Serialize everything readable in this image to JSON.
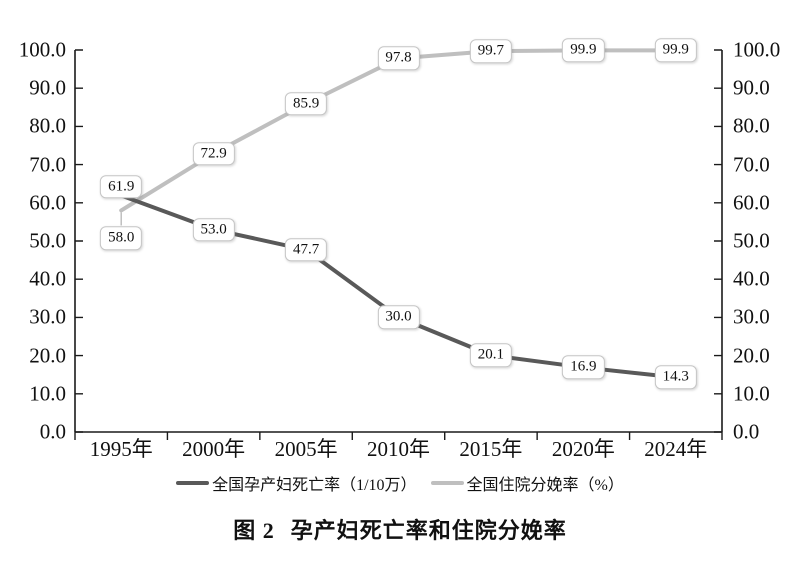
{
  "figure": {
    "caption_label": "图 2",
    "caption_title": "孕产妇死亡率和住院分娩率"
  },
  "chart_data": {
    "type": "line",
    "title": "图2　孕产妇死亡率和住院分娩率",
    "categories": [
      "1995年",
      "2000年",
      "2005年",
      "2010年",
      "2015年",
      "2020年",
      "2024年"
    ],
    "series": [
      {
        "name": "全国孕产妇死亡率（1/10万）",
        "values": [
          61.9,
          53.0,
          47.7,
          30.0,
          20.1,
          16.9,
          14.3
        ],
        "labels": [
          "61.9",
          "53.0",
          "47.7",
          "30.0",
          "20.1",
          "16.9",
          "14.3"
        ],
        "color": "#595959",
        "label_dx": [
          0,
          0,
          0,
          0,
          0,
          0,
          0
        ],
        "label_dy": [
          -9,
          0,
          0,
          0,
          0,
          0,
          0
        ],
        "leader_points": []
      },
      {
        "name": "全国住院分娩率（%）",
        "values": [
          58.0,
          72.9,
          85.9,
          97.8,
          99.7,
          99.9,
          99.9
        ],
        "labels": [
          "58.0",
          "72.9",
          "85.9",
          "97.8",
          "99.7",
          "99.9",
          "99.9"
        ],
        "color": "#bfbfbf",
        "label_dx": [
          0,
          0,
          0,
          0,
          0,
          0,
          0
        ],
        "label_dy": [
          28,
          0,
          0,
          0,
          0,
          0,
          0
        ],
        "leader_points": [
          0
        ]
      }
    ],
    "ylim": [
      0,
      100
    ],
    "ytick_step": 10,
    "yticklabels": [
      "0.0",
      "10.0",
      "20.0",
      "30.0",
      "40.0",
      "50.0",
      "60.0",
      "70.0",
      "80.0",
      "90.0",
      "100.0"
    ],
    "dual_axis": true,
    "grid": false,
    "legend_position": "bottom",
    "data_labels": true,
    "axis_color": "#1a1a1a",
    "label_box": {
      "bg": "#ffffff",
      "border": "#c6c6c6",
      "text": "#111111"
    }
  }
}
